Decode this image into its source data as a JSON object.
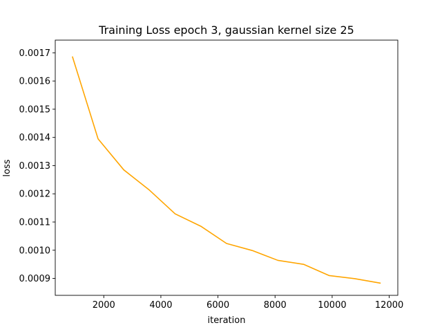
{
  "chart_data": {
    "type": "line",
    "title": "Training Loss epoch 3, gaussian kernel size 25",
    "xlabel": "iteration",
    "ylabel": "loss",
    "xlim": [
      300,
      12300
    ],
    "ylim": [
      0.00084,
      0.001745
    ],
    "xticks": [
      2000,
      4000,
      6000,
      8000,
      10000,
      12000
    ],
    "xtick_labels": [
      "2000",
      "4000",
      "6000",
      "8000",
      "10000",
      "12000"
    ],
    "yticks": [
      0.0009,
      0.001,
      0.0011,
      0.0012,
      0.0013,
      0.0014,
      0.0015,
      0.0016,
      0.0017
    ],
    "ytick_labels": [
      "0.0009",
      "0.0010",
      "0.0011",
      "0.0012",
      "0.0013",
      "0.0014",
      "0.0015",
      "0.0016",
      "0.0017"
    ],
    "grid": false,
    "series": [
      {
        "color": "#FFA500",
        "x": [
          900,
          1800,
          2700,
          3600,
          4500,
          5400,
          6300,
          7200,
          8100,
          9000,
          9900,
          10800,
          11700
        ],
        "y": [
          0.001687,
          0.001395,
          0.001285,
          0.001213,
          0.001129,
          0.001085,
          0.001024,
          0.000999,
          0.000964,
          0.00095,
          0.00091,
          0.000899,
          0.000883
        ]
      }
    ]
  }
}
